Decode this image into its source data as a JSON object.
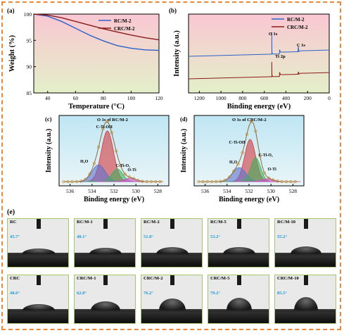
{
  "panels": {
    "a": {
      "label": "(a)",
      "chart_data": {
        "type": "line",
        "xlabel": "Temperature (°C)",
        "ylabel": "Weight (%)",
        "xlim": [
          30,
          120
        ],
        "ylim": [
          85,
          100
        ],
        "xticks": [
          "40",
          "60",
          "80",
          "100",
          "120"
        ],
        "yticks": [
          "85",
          "90",
          "95",
          "100"
        ],
        "legend_position": "top-right",
        "series": [
          {
            "name": "RC/M-2",
            "color": "#2e62c9",
            "x": [
              30,
              40,
              50,
              60,
              70,
              80,
              90,
              100,
              110,
              120
            ],
            "y": [
              100,
              99.6,
              98.6,
              97.3,
              96.0,
              94.9,
              94.0,
              93.5,
              93.2,
              93.1
            ]
          },
          {
            "name": "CRC/M-2",
            "color": "#8b1a1a",
            "x": [
              30,
              40,
              50,
              60,
              70,
              80,
              90,
              100,
              110,
              120
            ],
            "y": [
              100,
              99.8,
              99.3,
              98.6,
              97.9,
              97.2,
              96.6,
              96.0,
              95.5,
              95.1
            ]
          }
        ]
      }
    },
    "b": {
      "label": "(b)",
      "chart_data": {
        "type": "line",
        "xlabel": "Binding energy (eV)",
        "ylabel": "Intensity (a.u.)",
        "xlim": [
          1300,
          0
        ],
        "xticks": [
          "1200",
          "1000",
          "800",
          "600",
          "400",
          "200",
          "0"
        ],
        "legend_position": "top-right",
        "annotations": [
          "O 1s",
          "C 1s",
          "Ti 2p"
        ],
        "series": [
          {
            "name": "RC/M-2",
            "color": "#2e62c9"
          },
          {
            "name": "CRC/M-2",
            "color": "#8b1a1a"
          }
        ]
      }
    },
    "c": {
      "label": "(c)",
      "title": "O 1s of RC/M-2",
      "chart_data": {
        "type": "area",
        "xlabel": "Binding energy (eV)",
        "ylabel": "Intensity (a.u.)",
        "xlim": [
          537,
          527
        ],
        "xticks": [
          "536",
          "534",
          "532",
          "530",
          "528"
        ],
        "annotations": [
          "C-Ti-OH",
          "H₂O",
          "C-Ti-O₂",
          "O-Ti"
        ],
        "components": [
          {
            "name": "C-Ti-OH",
            "center": 532.6,
            "color": "#d4393f"
          },
          {
            "name": "H₂O",
            "center": 533.4,
            "color": "#5b6fd1"
          },
          {
            "name": "C-Ti-O₂",
            "center": 531.7,
            "color": "#3fae5a"
          },
          {
            "name": "O-Ti",
            "center": 530.5,
            "color": "#d14bd1"
          }
        ]
      }
    },
    "d": {
      "label": "(d)",
      "title": "O 1s of CRC/M-2",
      "chart_data": {
        "type": "area",
        "xlabel": "Binding energy (eV)",
        "ylabel": "Intensity (a.u.)",
        "xlim": [
          537,
          527
        ],
        "xticks": [
          "536",
          "534",
          "532",
          "530",
          "528"
        ],
        "annotations": [
          "C-Ti-OH",
          "C-Ti-O₂",
          "H₂O",
          "O-Ti"
        ],
        "components": [
          {
            "name": "C-Ti-OH",
            "center": 531.9,
            "color": "#d4393f"
          },
          {
            "name": "H₂O",
            "center": 532.9,
            "color": "#5b6fd1"
          },
          {
            "name": "C-Ti-O₂",
            "center": 531.4,
            "color": "#3fae5a"
          },
          {
            "name": "O-Ti",
            "center": 530.3,
            "color": "#d14bd1"
          }
        ]
      }
    },
    "e": {
      "label": "(e)",
      "samples": [
        {
          "name": "RC",
          "angle": "45.7°"
        },
        {
          "name": "RC/M-1",
          "angle": "48.1°"
        },
        {
          "name": "RC/M-2",
          "angle": "51.8°"
        },
        {
          "name": "RC/M-5",
          "angle": "53.2°"
        },
        {
          "name": "RC/M-10",
          "angle": "55.2°"
        },
        {
          "name": "CRC",
          "angle": "48.6°"
        },
        {
          "name": "CRC/M-1",
          "angle": "62.8°"
        },
        {
          "name": "CRC/M-2",
          "angle": "76.2°"
        },
        {
          "name": "CRC/M-5",
          "angle": "79.2°"
        },
        {
          "name": "CRC/M-10",
          "angle": "85.5°"
        }
      ]
    }
  }
}
